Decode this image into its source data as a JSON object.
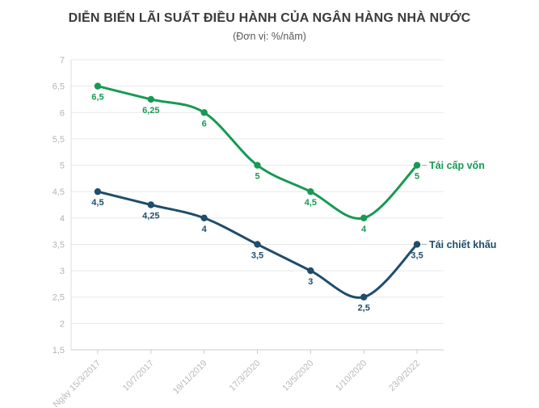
{
  "chart_data": {
    "type": "line",
    "title": "DIỄN BIẾN LÃI SUẤT ĐIỀU HÀNH CỦA NGÂN HÀNG NHÀ NƯỚC",
    "subtitle": "(Đơn vị: %/năm)",
    "categories": [
      "Ngày 15/3/2017",
      "10/7/2017",
      "19/11/2019",
      "17/3/2020",
      "13/5/2020",
      "1/10/2020",
      "23/9/2022"
    ],
    "series": [
      {
        "name": "Tái cấp vốn",
        "color": "#169a53",
        "values": [
          6.5,
          6.25,
          6,
          5,
          4.5,
          4,
          5
        ],
        "point_labels": [
          "6,5",
          "6,25",
          "6",
          "5",
          "4,5",
          "4",
          "5"
        ]
      },
      {
        "name": "Tái chiết khấu",
        "color": "#1f4d6b",
        "values": [
          4.5,
          4.25,
          4,
          3.5,
          3,
          2.5,
          3.5
        ],
        "point_labels": [
          "4,5",
          "4,25",
          "4",
          "3,5",
          "3",
          "2,5",
          "3,5"
        ]
      }
    ],
    "ylim": [
      1.5,
      7
    ],
    "y_tick_step": 0.5,
    "y_tick_labels": [
      "1,5",
      "2",
      "2,5",
      "3",
      "3,5",
      "4",
      "4,5",
      "5",
      "5,5",
      "6",
      "6,5",
      "7"
    ],
    "grid": "horizontal",
    "legend_position": "end-of-line",
    "colors": {
      "gridline": "#e8e8e8",
      "axis_line": "#dcdcdc",
      "tick_mark": "#cccccc",
      "connector": "#aaaaaa"
    }
  }
}
